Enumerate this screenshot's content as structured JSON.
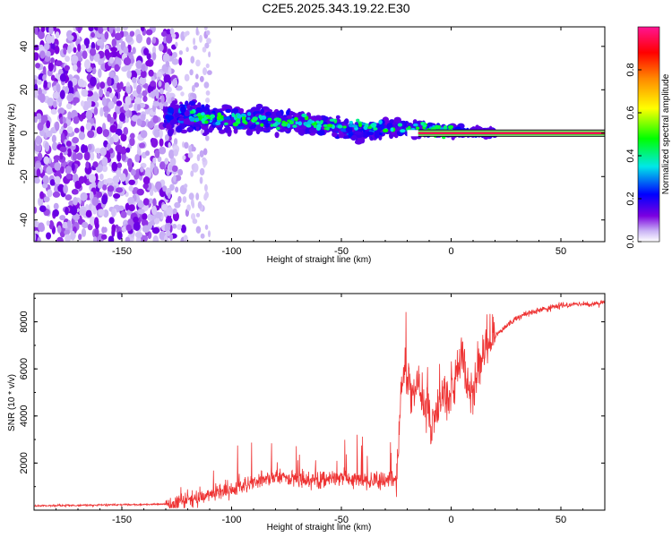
{
  "figure_title": "C2E5.2025.343.19.22.E30",
  "chart_data": [
    {
      "type": "heatmap",
      "title": "C2E5.2025.343.19.22.E30",
      "xlabel": "Height of straight line (km)",
      "ylabel": "Frequency (Hz)",
      "xlim": [
        -190,
        70
      ],
      "ylim": [
        -50,
        49
      ],
      "xticks": [
        -150,
        -100,
        -50,
        0,
        50
      ],
      "yticks": [
        -40,
        -20,
        0,
        20,
        40
      ],
      "colorbar": {
        "label": "Normalized spectral amplitude",
        "range": [
          0.0,
          1.0
        ],
        "ticks": [
          0.0,
          0.2,
          0.4,
          0.6,
          0.8
        ],
        "colors": [
          "#ffffff",
          "#c9b3f5",
          "#7b00e0",
          "#0000ff",
          "#00e8e8",
          "#00ff00",
          "#ffff00",
          "#ff8800",
          "#ff0000",
          "#ff1493"
        ]
      },
      "regions": [
        {
          "name": "noise",
          "x_range": [
            -190,
            -125
          ],
          "freq_range": [
            -50,
            49
          ],
          "amplitude": 0.08
        },
        {
          "name": "meteor-signal",
          "x_range": [
            -130,
            20
          ],
          "center_freq_start": 8,
          "center_freq_end": 0,
          "amplitude": 0.35
        },
        {
          "name": "carrier-line",
          "x_range": [
            -15,
            70
          ],
          "freq": 0,
          "amplitude": 0.95
        }
      ]
    },
    {
      "type": "line",
      "title": "",
      "xlabel": "Height of straight line (km)",
      "ylabel": "SNR (10 * v/v)",
      "xlim": [
        -190,
        70
      ],
      "ylim": [
        0,
        9200
      ],
      "xticks": [
        -150,
        -100,
        -50,
        0,
        50
      ],
      "yticks": [
        2000,
        4000,
        6000,
        8000
      ],
      "series": [
        {
          "name": "SNR",
          "color": "#ee3333",
          "x": [
            -190,
            -175,
            -160,
            -145,
            -130,
            -120,
            -110,
            -100,
            -90,
            -80,
            -70,
            -60,
            -50,
            -40,
            -30,
            -25,
            -22,
            -18,
            -15,
            -10,
            -5,
            0,
            5,
            8,
            10,
            12,
            15,
            20,
            25,
            30,
            40,
            50,
            60,
            70
          ],
          "y": [
            180,
            200,
            220,
            230,
            260,
            450,
            700,
            850,
            1200,
            1400,
            1300,
            1250,
            1400,
            1300,
            1250,
            1400,
            5800,
            4800,
            5500,
            3800,
            4600,
            5000,
            6500,
            5200,
            5000,
            5800,
            6800,
            7400,
            7800,
            8200,
            8500,
            8700,
            8750,
            8800
          ]
        }
      ]
    }
  ]
}
